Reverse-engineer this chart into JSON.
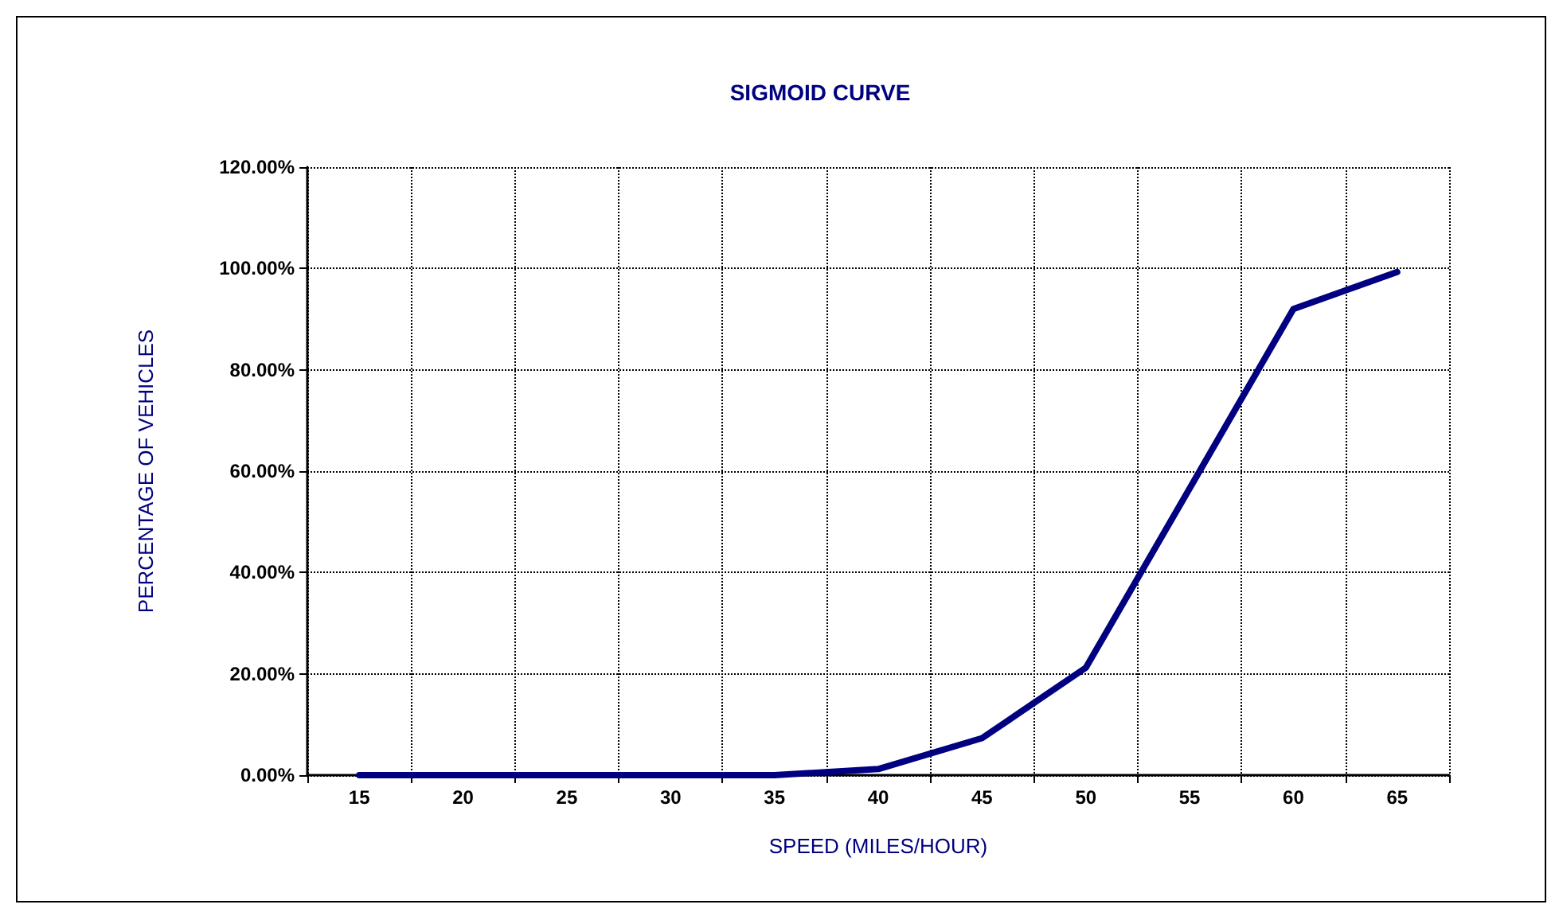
{
  "chart_data": {
    "type": "line",
    "title": "SIGMOID CURVE",
    "xlabel": "SPEED (MILES/HOUR)",
    "ylabel": "PERCENTAGE OF VEHICLES",
    "categories": [
      "15",
      "20",
      "25",
      "30",
      "35",
      "40",
      "45",
      "50",
      "55",
      "60",
      "65"
    ],
    "series": [
      {
        "color": "#000080",
        "values": [
          0,
          0,
          0,
          0,
          0,
          1.2,
          7.3,
          21.2,
          56.6,
          92,
          99.3
        ]
      }
    ],
    "ylim": [
      0,
      120
    ],
    "yticks": [
      {
        "value": 0,
        "label": "0.00%"
      },
      {
        "value": 20,
        "label": "20.00%"
      },
      {
        "value": 40,
        "label": "40.00%"
      },
      {
        "value": 60,
        "label": "60.00%"
      },
      {
        "value": 80,
        "label": "80.00%"
      },
      {
        "value": 100,
        "label": "100.00%"
      },
      {
        "value": 120,
        "label": "120.00%"
      }
    ],
    "grid": true,
    "marker": "none",
    "line_style": "solid"
  }
}
